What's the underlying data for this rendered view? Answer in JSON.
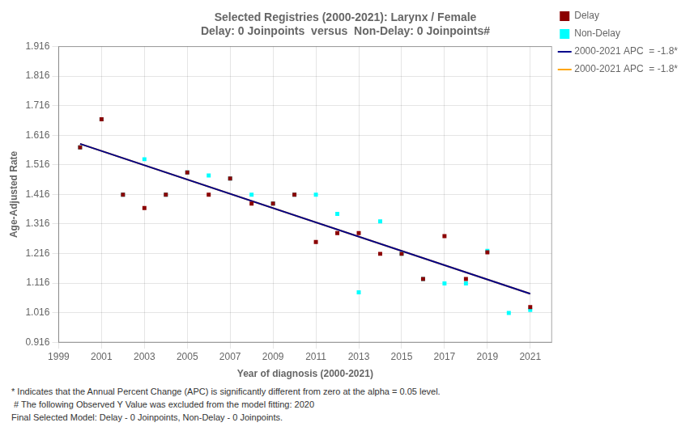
{
  "chart_data": {
    "type": "scatter",
    "title": [
      "Selected Registries (2000-2021): Larynx / Female",
      "Delay: 0 Joinpoints  versus  Non-Delay: 0 Joinpoints#"
    ],
    "xlabel": "Year of diagnosis (2000-2021)",
    "ylabel": "Age-Adjusted Rate",
    "xlim": [
      1999,
      2022
    ],
    "ylim": [
      0.916,
      1.916
    ],
    "xticks": [
      1999,
      2001,
      2003,
      2005,
      2007,
      2009,
      2011,
      2013,
      2015,
      2017,
      2019,
      2021
    ],
    "yticks": [
      0.916,
      1.016,
      1.116,
      1.216,
      1.316,
      1.416,
      1.516,
      1.616,
      1.716,
      1.816,
      1.916
    ],
    "grid": true,
    "legend": "right",
    "series": [
      {
        "name": "Delay",
        "type": "scatter",
        "marker": "square",
        "color": "#8B0000",
        "x": [
          2000,
          2001,
          2002,
          2003,
          2004,
          2005,
          2006,
          2007,
          2008,
          2009,
          2010,
          2011,
          2012,
          2013,
          2014,
          2015,
          2016,
          2017,
          2018,
          2019,
          2021
        ],
        "values": [
          1.575,
          1.67,
          1.415,
          1.37,
          1.415,
          1.49,
          1.415,
          1.47,
          1.385,
          1.385,
          1.415,
          1.255,
          1.285,
          1.285,
          1.215,
          1.215,
          1.13,
          1.275,
          1.13,
          1.22,
          1.035
        ]
      },
      {
        "name": "2000-2021 APC  = -1.8*",
        "type": "line",
        "line_style": "solid",
        "color": "#00008B",
        "x": [
          2000,
          2021
        ],
        "values": [
          1.587,
          1.08
        ]
      },
      {
        "name": "Non-Delay",
        "type": "scatter",
        "marker": "square",
        "color": "#00FFFF",
        "x": [
          2000,
          2001,
          2002,
          2003,
          2004,
          2005,
          2006,
          2007,
          2008,
          2009,
          2010,
          2011,
          2012,
          2013,
          2014,
          2015,
          2016,
          2017,
          2018,
          2019,
          2020,
          2021
        ],
        "values": [
          1.575,
          1.67,
          1.415,
          1.535,
          1.415,
          1.49,
          1.48,
          1.47,
          1.415,
          1.385,
          1.415,
          1.415,
          1.35,
          1.085,
          1.325,
          1.215,
          1.13,
          1.115,
          1.115,
          1.225,
          1.015,
          1.025
        ]
      },
      {
        "name": "2000-2021 APC  = -1.8*",
        "type": "line",
        "line_style": "solid",
        "color": "#FFA500",
        "x": [
          2000,
          2021
        ],
        "values": [
          1.587,
          1.08
        ]
      }
    ],
    "annotations": [
      "* Indicates that the Annual Percent Change (APC) is significantly different from zero at the alpha = 0.05 level.",
      " # The following Observed Y Value was excluded from the model fitting: 2020",
      "Final Selected Model: Delay - 0 Joinpoints, Non-Delay - 0 Joinpoints."
    ]
  }
}
